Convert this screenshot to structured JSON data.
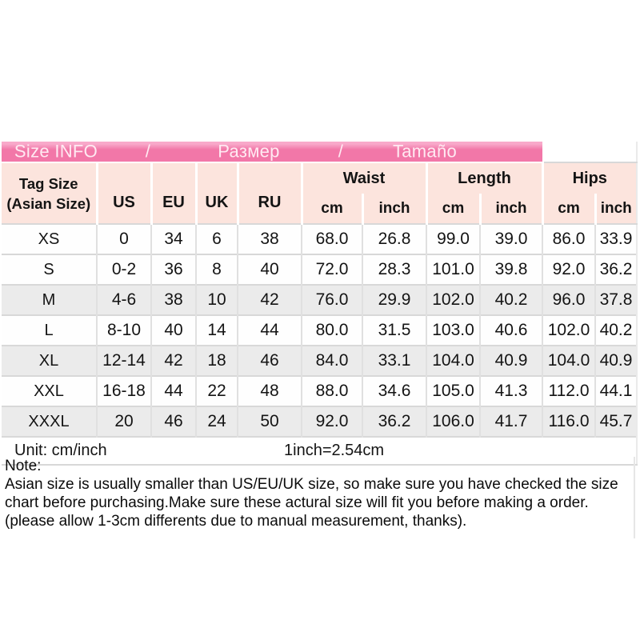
{
  "title": {
    "segments": [
      "Size INFO",
      "/",
      "Размер",
      "/",
      "Tamaño"
    ]
  },
  "colors": {
    "title_bar_pink": "#f277a8",
    "title_bar_pink_light": "#f8a9ca",
    "title_text": "#ffeaf2",
    "header_cell_pink": "#fce4dd",
    "shaded_row_gray": "#ebebeb",
    "grid_line": "#d8d8d8"
  },
  "table": {
    "header": {
      "tag_size_line1": "Tag Size",
      "tag_size_line2": "(Asian Size)",
      "region_cols": [
        "US",
        "EU",
        "UK",
        "RU"
      ],
      "measure_groups": [
        "Waist",
        "Length",
        "Hips"
      ],
      "unit_cols": [
        "cm",
        "inch"
      ]
    },
    "rows": [
      {
        "size": "XS",
        "us": "0",
        "eu": "34",
        "uk": "6",
        "ru": "38",
        "waist_cm": "68.0",
        "waist_in": "26.8",
        "length_cm": "99.0",
        "length_in": "39.0",
        "hips_cm": "86.0",
        "hips_in": "33.9",
        "shaded": false
      },
      {
        "size": "S",
        "us": "0-2",
        "eu": "36",
        "uk": "8",
        "ru": "40",
        "waist_cm": "72.0",
        "waist_in": "28.3",
        "length_cm": "101.0",
        "length_in": "39.8",
        "hips_cm": "92.0",
        "hips_in": "36.2",
        "shaded": false
      },
      {
        "size": "M",
        "us": "4-6",
        "eu": "38",
        "uk": "10",
        "ru": "42",
        "waist_cm": "76.0",
        "waist_in": "29.9",
        "length_cm": "102.0",
        "length_in": "40.2",
        "hips_cm": "96.0",
        "hips_in": "37.8",
        "shaded": true
      },
      {
        "size": "L",
        "us": "8-10",
        "eu": "40",
        "uk": "14",
        "ru": "44",
        "waist_cm": "80.0",
        "waist_in": "31.5",
        "length_cm": "103.0",
        "length_in": "40.6",
        "hips_cm": "102.0",
        "hips_in": "40.2",
        "shaded": false
      },
      {
        "size": "XL",
        "us": "12-14",
        "eu": "42",
        "uk": "18",
        "ru": "46",
        "waist_cm": "84.0",
        "waist_in": "33.1",
        "length_cm": "104.0",
        "length_in": "40.9",
        "hips_cm": "104.0",
        "hips_in": "40.9",
        "shaded": true
      },
      {
        "size": "XXL",
        "us": "16-18",
        "eu": "44",
        "uk": "22",
        "ru": "48",
        "waist_cm": "88.0",
        "waist_in": "34.6",
        "length_cm": "105.0",
        "length_in": "41.3",
        "hips_cm": "112.0",
        "hips_in": "44.1",
        "shaded": false
      },
      {
        "size": "XXXL",
        "us": "20",
        "eu": "46",
        "uk": "24",
        "ru": "50",
        "waist_cm": "92.0",
        "waist_in": "36.2",
        "length_cm": "106.0",
        "length_in": "41.7",
        "hips_cm": "116.0",
        "hips_in": "45.7",
        "shaded": true
      }
    ]
  },
  "footer": {
    "unit_label": "Unit: cm/inch",
    "conversion": "1inch=2.54cm"
  },
  "note": {
    "heading": "Note:",
    "body": "Asian size is usually smaller than US/EU/UK size, so make sure you have checked the size chart before purchasing.Make sure these actural size will fit you before making a order.(please allow 1-3cm differents due to manual measurement, thanks)."
  }
}
